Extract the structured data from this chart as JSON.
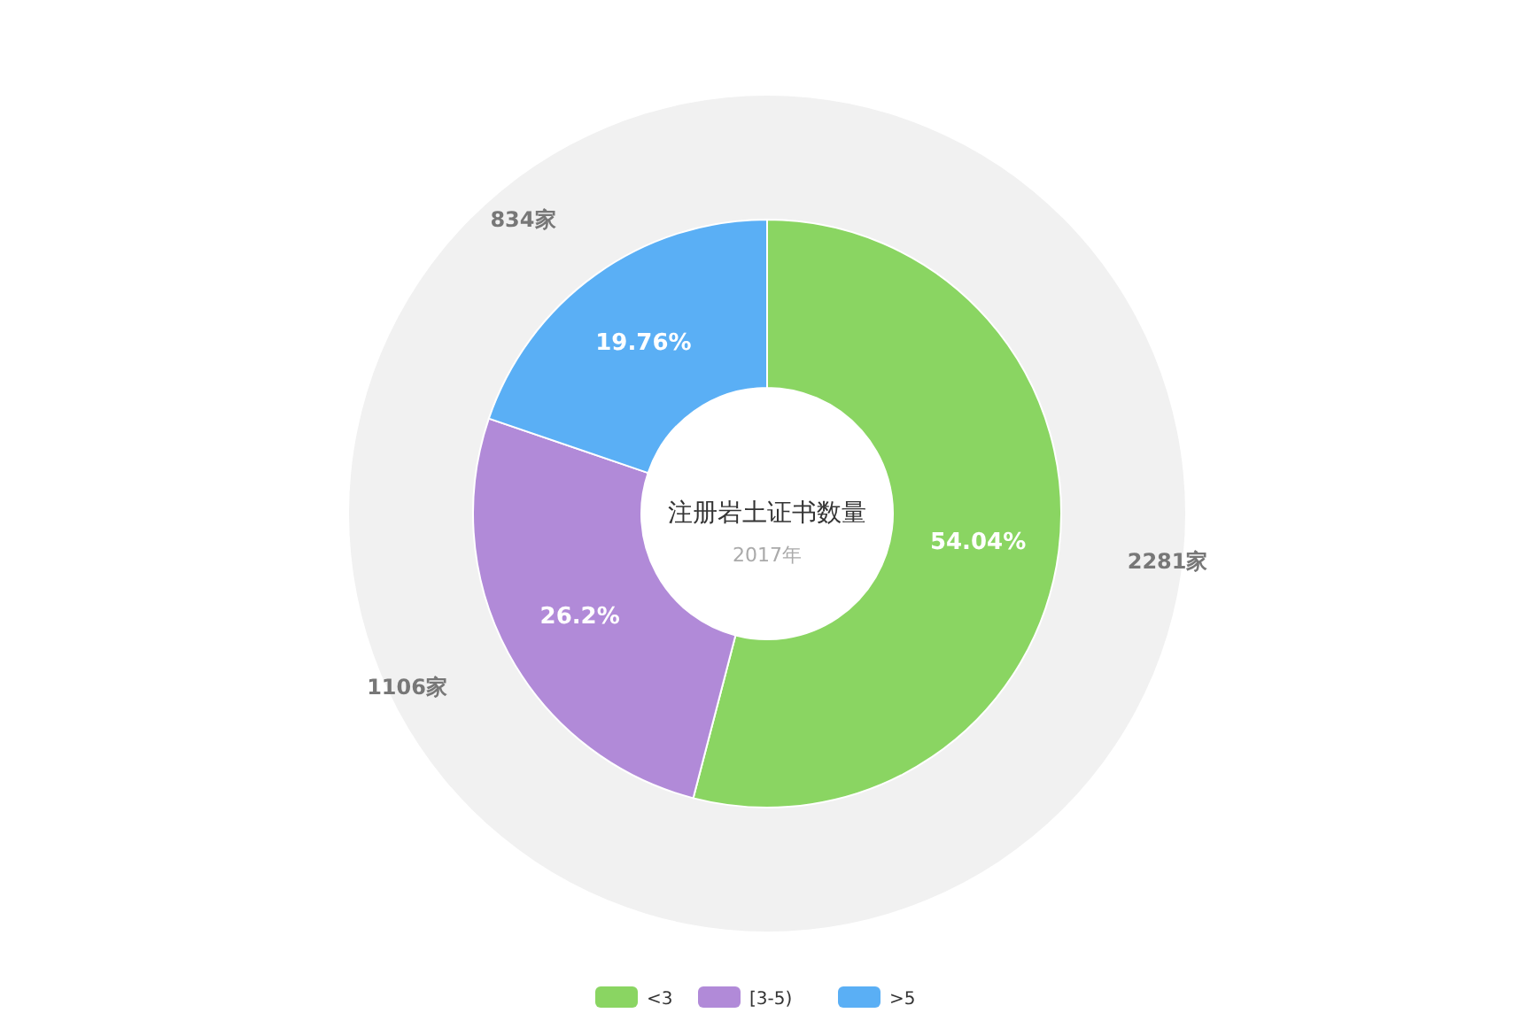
{
  "chart_data": {
    "type": "donut",
    "title": "注册岩土证书数量",
    "subtitle": "2017年",
    "categories": [
      "<3",
      "[3-5)",
      ">5"
    ],
    "values": [
      2281,
      1106,
      834
    ],
    "colors": [
      "#8ad562",
      "#b18ad8",
      "#5aaff5"
    ],
    "value_labels": [
      "2281家",
      "1106家",
      "834家"
    ],
    "annotations": [
      {
        "text": "54.04%",
        "x": "<3"
      },
      {
        "text": "26.2%",
        "x": "[3-5)"
      },
      {
        "text": "19.76%",
        "x": ">5"
      }
    ],
    "legend": "bottom"
  }
}
